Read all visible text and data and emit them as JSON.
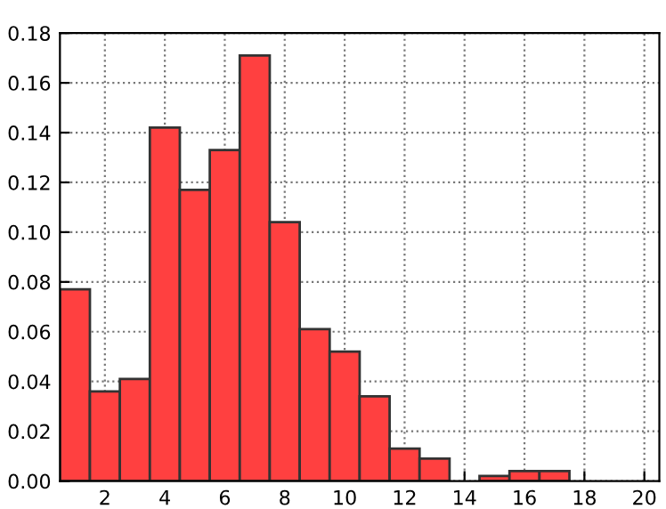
{
  "chart_data": {
    "type": "histogram",
    "bins": [
      0.5,
      1.5,
      2.5,
      3.5,
      4.5,
      5.5,
      6.5,
      7.5,
      8.5,
      9.5,
      10.5,
      11.5,
      12.5,
      13.5,
      14.5,
      15.5,
      16.5,
      17.5,
      18.5,
      19.5,
      20.5
    ],
    "values": [
      0.077,
      0.036,
      0.041,
      0.142,
      0.117,
      0.133,
      0.171,
      0.104,
      0.061,
      0.052,
      0.034,
      0.013,
      0.009,
      0,
      0.002,
      0.004,
      0.004,
      0,
      0,
      0
    ],
    "color": "#ff4040",
    "xlim": [
      0.5,
      20.5
    ],
    "xticks": [
      2,
      4,
      6,
      8,
      10,
      12,
      14,
      16,
      18,
      20
    ],
    "ylim": [
      0,
      0.18
    ],
    "yticks": [
      {
        "value": 0,
        "label": "0.00"
      },
      {
        "value": 0.02,
        "label": "0.02"
      },
      {
        "value": 0.04,
        "label": "0.04"
      },
      {
        "value": 0.06,
        "label": "0.06"
      },
      {
        "value": 0.08,
        "label": "0.08"
      },
      {
        "value": 0.1,
        "label": "0.10"
      },
      {
        "value": 0.12,
        "label": "0.12"
      },
      {
        "value": 0.14,
        "label": "0.14"
      },
      {
        "value": 0.16,
        "label": "0.16"
      },
      {
        "value": 0.18,
        "label": "0.18"
      }
    ],
    "grid": true
  }
}
